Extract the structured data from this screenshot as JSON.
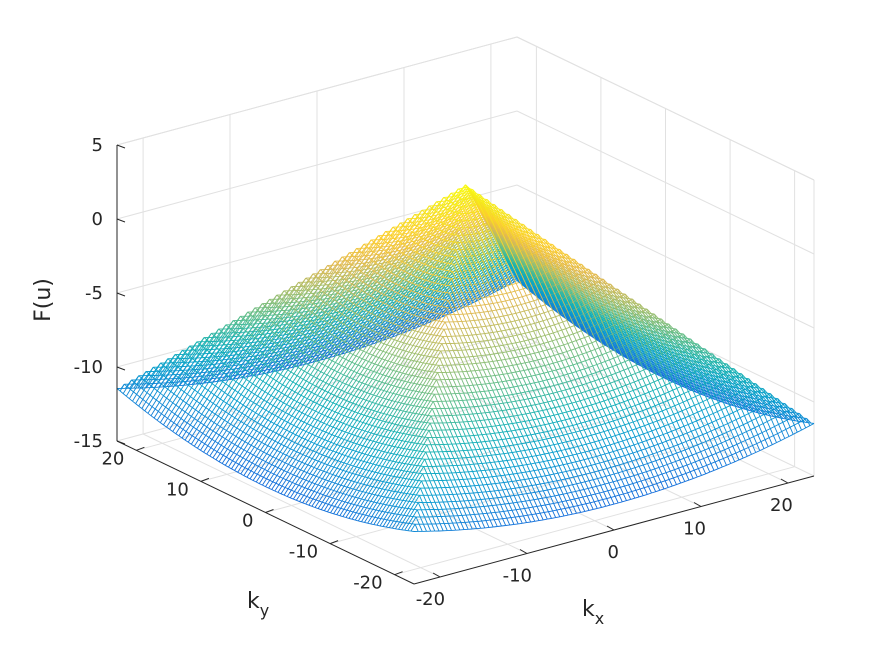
{
  "chart_data": {
    "type": "surface3d",
    "zlabel": "F(u)",
    "xlabel": {
      "main": "k",
      "sub": "x"
    },
    "ylabel": {
      "main": "k",
      "sub": "y"
    },
    "xlim": [
      -23,
      23
    ],
    "ylim": [
      -23,
      23
    ],
    "zlim": [
      -15,
      5
    ],
    "xticks": [
      "-20",
      "-10",
      "0",
      "10",
      "20"
    ],
    "yticks": [
      "-20",
      "-10",
      "0",
      "10",
      "20"
    ],
    "zticks": [
      "-15",
      "-10",
      "-5",
      "0",
      "5"
    ],
    "xtick_values": [
      -20,
      -10,
      0,
      10,
      20
    ],
    "ytick_values": [
      -20,
      -10,
      0,
      10,
      20
    ],
    "ztick_values": [
      -15,
      -10,
      -5,
      0,
      5
    ],
    "grid": true,
    "colormap": "parula",
    "surface": {
      "shape": "pyramid with quadratic flank sag",
      "peak": {
        "kx": 0,
        "ky": 0,
        "F": 3.5
      },
      "slope_per_unit_k": 0.65,
      "base_level_min": -14.5,
      "floor_level": -11.5,
      "flank_sag_depth": 1.8,
      "x_range": [
        -23,
        23
      ],
      "y_range": [
        -23,
        23
      ]
    }
  }
}
